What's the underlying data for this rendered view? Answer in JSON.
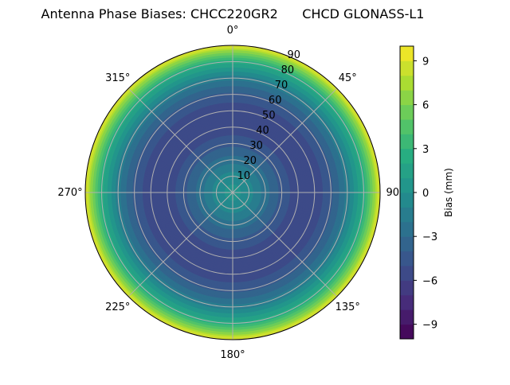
{
  "chart_data": {
    "type": "polar-contour",
    "title": "Antenna Phase Biases: CHCC220GR2      CHCD GLONASS-L1",
    "angle_labels": [
      "0°",
      "45°",
      "90°",
      "135°",
      "180°",
      "225°",
      "270°",
      "315°"
    ],
    "radial_labels": [
      "10",
      "20",
      "30",
      "40",
      "50",
      "60",
      "70",
      "80",
      "90"
    ],
    "radial_range": [
      0,
      90
    ],
    "angular_direction": "clockwise",
    "zero_location": "top",
    "grid": true,
    "colormap": "viridis",
    "colorbar": {
      "label": "Bias (mm)",
      "range": [
        -10,
        10
      ],
      "level_step": 1,
      "tick_values": [
        9,
        6,
        3,
        0,
        -3,
        -6,
        -9
      ],
      "tick_labels": [
        "9",
        "6",
        "3",
        "0",
        "−3",
        "−6",
        "−9"
      ]
    },
    "profile": {
      "zenith_deg": [
        0,
        5,
        10,
        15,
        20,
        25,
        30,
        35,
        40,
        45,
        50,
        55,
        60,
        65,
        70,
        75,
        80,
        85,
        90
      ],
      "bias_mm": [
        0.5,
        0.0,
        -0.5,
        -1.5,
        -2.5,
        -3.5,
        -4.3,
        -5.0,
        -5.5,
        -5.7,
        -5.6,
        -5.0,
        -4.2,
        -3.0,
        -1.5,
        0.3,
        2.5,
        5.5,
        9.5
      ]
    }
  }
}
